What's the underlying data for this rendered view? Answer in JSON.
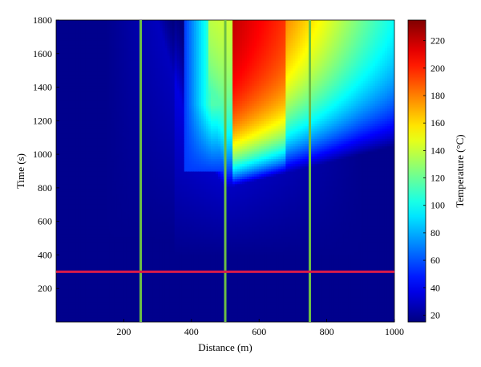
{
  "chart_data": {
    "type": "heatmap",
    "title": "",
    "xlabel": "Distance (m)",
    "ylabel": "Time (s)",
    "xlim": [
      0,
      1000
    ],
    "ylim": [
      0,
      1800
    ],
    "xticks": [
      "200",
      "400",
      "600",
      "800",
      "1000"
    ],
    "yticks": [
      "200",
      "400",
      "600",
      "800",
      "1000",
      "1200",
      "1400",
      "1600",
      "1800"
    ],
    "colorbar": {
      "label": "Temperature (°C)",
      "range": [
        15,
        235
      ],
      "ticks": [
        "20",
        "40",
        "60",
        "80",
        "100",
        "120",
        "140",
        "160",
        "180",
        "200",
        "220"
      ],
      "colormap": "jet"
    },
    "description_values": {
      "x": [
        0,
        100,
        200,
        300,
        400,
        450,
        500,
        600,
        700,
        800,
        900,
        1000
      ],
      "t": [
        0,
        300,
        600,
        700,
        800,
        900,
        1000,
        1100,
        1200,
        1300,
        1400,
        1500,
        1600,
        1700,
        1800
      ],
      "temperature_front_onset_time": [
        1800,
        1800,
        1800,
        1800,
        1100,
        950,
        800,
        850,
        900,
        950,
        1000,
        1050
      ]
    },
    "vertical_markers": [
      {
        "x": 250,
        "color": "#6cbe45"
      },
      {
        "x": 500,
        "color": "#6cbe45"
      },
      {
        "x": 750,
        "color": "#6cbe45"
      }
    ],
    "horizontal_markers": [
      {
        "y": 300,
        "color": "#d81b4a"
      }
    ]
  }
}
